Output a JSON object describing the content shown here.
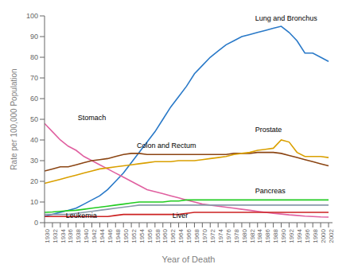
{
  "chart_data": {
    "type": "line",
    "xlabel": "Year of Death",
    "ylabel": "Rate per 100,000 Population",
    "x": [
      1930,
      1932,
      1934,
      1936,
      1938,
      1940,
      1942,
      1944,
      1946,
      1948,
      1950,
      1952,
      1954,
      1956,
      1958,
      1960,
      1962,
      1964,
      1966,
      1968,
      1970,
      1972,
      1974,
      1976,
      1978,
      1980,
      1982,
      1984,
      1986,
      1988,
      1990,
      1992,
      1994,
      1996,
      1998,
      2000,
      2002
    ],
    "series": [
      {
        "color": "#2979C8",
        "values": [
          3,
          4,
          5,
          6,
          7,
          9,
          11,
          13,
          16,
          20,
          24,
          29,
          34,
          39,
          44,
          50,
          56,
          61,
          66,
          72,
          76,
          80,
          83,
          86,
          88,
          90,
          91,
          92,
          93,
          94,
          95,
          92,
          88,
          82,
          82,
          80,
          78
        ]
      },
      {
        "color": "#E060A0",
        "values": [
          48,
          44,
          40,
          37,
          35,
          32,
          30,
          28,
          26,
          24,
          22,
          20,
          18,
          16,
          15,
          14,
          13,
          12,
          11,
          10,
          9,
          8.5,
          8,
          7.5,
          7,
          6.5,
          6,
          5.5,
          5,
          4.5,
          4.2,
          3.8,
          3.5,
          3.2,
          3,
          2.8,
          2.7
        ]
      },
      {
        "color": "#8B4513",
        "values": [
          25,
          26,
          27,
          27,
          28,
          29,
          30,
          30.5,
          31,
          32,
          33,
          33.5,
          33.5,
          33,
          33,
          33,
          33,
          33,
          33,
          33,
          33,
          33,
          33,
          33,
          33.5,
          33.5,
          33.5,
          34,
          34,
          34,
          33.5,
          32.5,
          31.5,
          30.5,
          29.5,
          28.5,
          27.5
        ]
      },
      {
        "color": "#DAA000",
        "values": [
          19,
          20,
          21,
          22,
          23,
          24,
          25,
          26,
          26.5,
          27,
          27.5,
          28,
          28.5,
          29,
          29.5,
          29.5,
          29.5,
          30,
          30,
          30,
          30.5,
          31,
          31.5,
          32,
          33,
          33.5,
          34,
          35,
          35.5,
          36,
          40,
          39,
          34,
          32,
          32,
          32,
          31.5
        ]
      },
      {
        "color": "#22CC22",
        "values": [
          5,
          5.2,
          5.5,
          5.8,
          6,
          6.5,
          7,
          7.5,
          8,
          8.5,
          9,
          9.5,
          10,
          10,
          10,
          10,
          10.5,
          10.5,
          11,
          11,
          11,
          11,
          11,
          11,
          11,
          11,
          11,
          11,
          11,
          11,
          11,
          11,
          11,
          11,
          11,
          11,
          11
        ]
      },
      {
        "color": "#8899AA",
        "values": [
          4,
          4,
          4,
          4,
          4.5,
          5,
          5.5,
          6,
          6.5,
          7,
          7.5,
          8,
          8.5,
          8.5,
          8.5,
          8.5,
          8.5,
          8.5,
          8.5,
          8.5,
          8.5,
          8.5,
          8.5,
          8.5,
          8.5,
          8.5,
          8.5,
          8.5,
          8.5,
          8.5,
          8.5,
          8.5,
          8.5,
          8.5,
          8.5,
          8.5,
          8.5
        ]
      },
      {
        "color": "#CC2222",
        "values": [
          3,
          3,
          3,
          3,
          3,
          3,
          3,
          3,
          3,
          3.5,
          4,
          4,
          4,
          4,
          4,
          4,
          4,
          4,
          4.5,
          5,
          5,
          5,
          5,
          5,
          5,
          5,
          5,
          5,
          5,
          5,
          5,
          5,
          5,
          5,
          5,
          5,
          5
        ]
      }
    ],
    "annotations": [
      {
        "text": "Lung and Bronchus",
        "x": 1983,
        "y": 97
      },
      {
        "text": "Stomach",
        "x": 1938,
        "y": 49
      },
      {
        "text": "Colon and Rectum",
        "x": 1953,
        "y": 35.5
      },
      {
        "text": "Prostate",
        "x": 1983,
        "y": 43
      },
      {
        "text": "Pancreas",
        "x": 1983,
        "y": 13.5
      },
      {
        "text": "Leukemia",
        "x": 1935,
        "y": 1.5
      },
      {
        "text": "Liver",
        "x": 1962,
        "y": 1.5
      }
    ],
    "xlim": [
      1930,
      2003
    ],
    "xticks": [
      1930,
      1932,
      1934,
      1936,
      1938,
      1940,
      1942,
      1944,
      1946,
      1948,
      1950,
      1952,
      1954,
      1956,
      1958,
      1960,
      1962,
      1964,
      1966,
      1968,
      1970,
      1972,
      1974,
      1976,
      1978,
      1980,
      1982,
      1984,
      1986,
      1988,
      1990,
      1992,
      1994,
      1996,
      1998,
      2000,
      2002
    ],
    "ylim": [
      0,
      100
    ],
    "yticks": [
      0,
      10,
      20,
      30,
      40,
      50,
      60,
      70,
      80,
      90,
      100
    ],
    "grid": false
  }
}
